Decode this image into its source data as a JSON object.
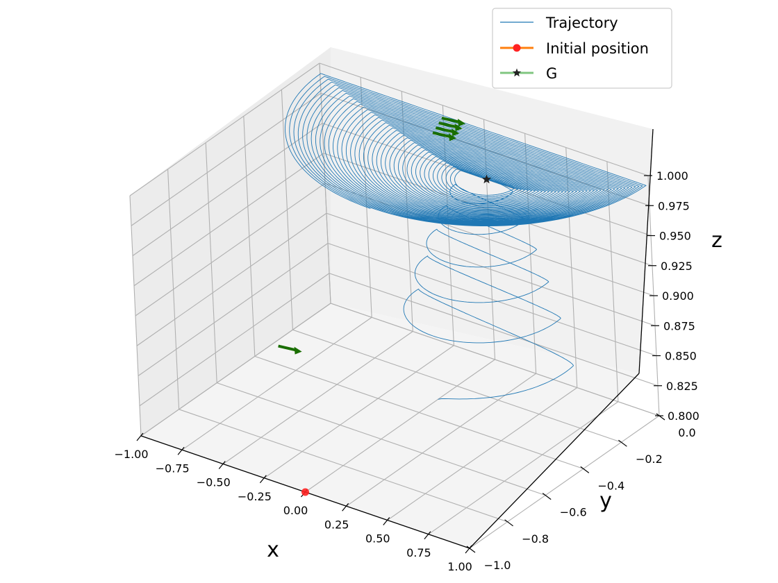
{
  "chart_data": {
    "type": "line3d",
    "title": "",
    "xlabel": "x",
    "ylabel": "y",
    "zlabel": "z",
    "xlim": [
      -1.0,
      1.0
    ],
    "ylim": [
      -1.0,
      0.0
    ],
    "zlim": [
      0.8,
      1.0
    ],
    "x_ticks": [
      "−1.00",
      "−0.75",
      "−0.50",
      "−0.25",
      "0.00",
      "0.25",
      "0.50",
      "0.75",
      "1.00"
    ],
    "y_ticks": [
      "−1.0",
      "−0.8",
      "−0.6",
      "−0.4",
      "−0.2",
      "0.0"
    ],
    "z_ticks": [
      "0.800",
      "0.825",
      "0.850",
      "0.875",
      "0.900",
      "0.925",
      "0.950",
      "0.975",
      "1.000"
    ],
    "grid": true,
    "legend_position": "top-right",
    "series": [
      {
        "name": "Trajectory",
        "kind": "spiral-line",
        "color": "#1f77b4",
        "start_point": [
          0.0,
          -1.0,
          0.8
        ],
        "converges_to": [
          0.0,
          0.0,
          0.95
        ],
        "turns": 45,
        "approx_radius_x": 1.0,
        "approx_radius_y": 0.6
      },
      {
        "name": "Initial position",
        "kind": "marker",
        "marker": "circle",
        "color": "#ff7f0e",
        "marker_color": "#ff2222",
        "point": [
          0.0,
          -1.0,
          0.8
        ]
      },
      {
        "name": "G",
        "kind": "marker",
        "marker": "star",
        "color": "#2ca02c",
        "marker_color": "#222222",
        "point": [
          0.0,
          0.0,
          0.95
        ]
      }
    ],
    "arrow_color": "#1a6e00",
    "arrows": [
      {
        "point": [
          -0.55,
          -0.6,
          0.85
        ]
      },
      {
        "point": [
          -0.2,
          0.0,
          0.99
        ]
      },
      {
        "point": [
          -0.22,
          0.0,
          0.985
        ]
      },
      {
        "point": [
          -0.24,
          0.0,
          0.98
        ]
      },
      {
        "point": [
          -0.26,
          0.0,
          0.975
        ]
      }
    ]
  }
}
